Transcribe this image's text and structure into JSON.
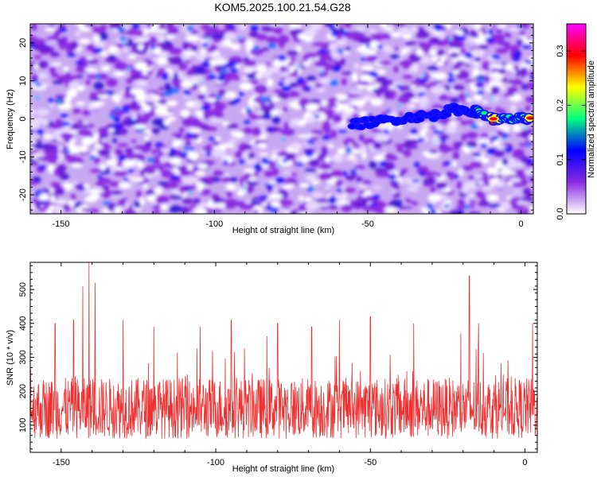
{
  "title": "KOM5.2025.100.21.54.G28",
  "colors": {
    "snr_line": "#ef3030",
    "colormap": [
      "#ffffff",
      "#8a2be2",
      "#0000ff",
      "#00ff80",
      "#ffff00",
      "#ff0000",
      "#ff00ff"
    ]
  },
  "chart_data": [
    {
      "type": "heatmap",
      "title": "KOM5.2025.100.21.54.G28",
      "xlabel": "Height of straight line (km)",
      "ylabel": "Frequency (Hz)",
      "xlim": [
        -160,
        4
      ],
      "ylim": [
        -25,
        25
      ],
      "x_ticks": [
        "-150",
        "-100",
        "-50",
        "0"
      ],
      "x_tick_values": [
        -150,
        -100,
        -50,
        0
      ],
      "y_ticks": [
        "20",
        "10",
        "0",
        "-10",
        "-20"
      ],
      "y_tick_values": [
        20,
        10,
        0,
        -10,
        -20
      ],
      "colorbar": {
        "label": "Normalized spectral amplitude",
        "range": [
          0.0,
          0.35
        ],
        "ticks": [
          "0.0",
          "0.1",
          "0.2",
          "0.3"
        ],
        "tick_values": [
          0.0,
          0.1,
          0.2,
          0.3
        ]
      },
      "notes": "noise field dominated by purple/blue; strong signal track near 0 Hz from about -55 km to 3 km",
      "track": {
        "x": [
          -55,
          -45,
          -35,
          -28,
          -22,
          -15,
          -9,
          -5,
          0,
          3
        ],
        "y": [
          -1.5,
          -0.5,
          0.5,
          1.0,
          2.5,
          2.0,
          0.0,
          -0.2,
          0.0,
          0.2
        ],
        "amplitude": [
          0.12,
          0.13,
          0.12,
          0.13,
          0.15,
          0.17,
          0.33,
          0.2,
          0.22,
          0.3
        ]
      }
    },
    {
      "type": "line",
      "xlabel": "Height of straight line (km)",
      "ylabel": "SNR (10 * v/v)",
      "xlim": [
        -160,
        4
      ],
      "ylim": [
        20,
        580
      ],
      "x_ticks": [
        "-150",
        "-100",
        "-50",
        "0"
      ],
      "x_tick_values": [
        -150,
        -100,
        -50,
        0
      ],
      "y_ticks": [
        "100",
        "200",
        "300",
        "400",
        "500"
      ],
      "y_tick_values": [
        100,
        200,
        300,
        400,
        500
      ],
      "series": [
        {
          "baseline": 150,
          "spread": 90,
          "peaks": {
            "x": [
              -152,
              -146,
              -143,
              -141,
              -139,
              -130,
              -120,
              -105,
              -95,
              -80,
              -69,
              -60,
              -50,
              -36,
              -18,
              -15,
              2.5
            ],
            "y": [
              400,
              410,
              510,
              580,
              520,
              410,
              390,
              390,
              410,
              400,
              390,
              410,
              420,
              400,
              540,
              400,
              400
            ]
          }
        }
      ]
    }
  ]
}
